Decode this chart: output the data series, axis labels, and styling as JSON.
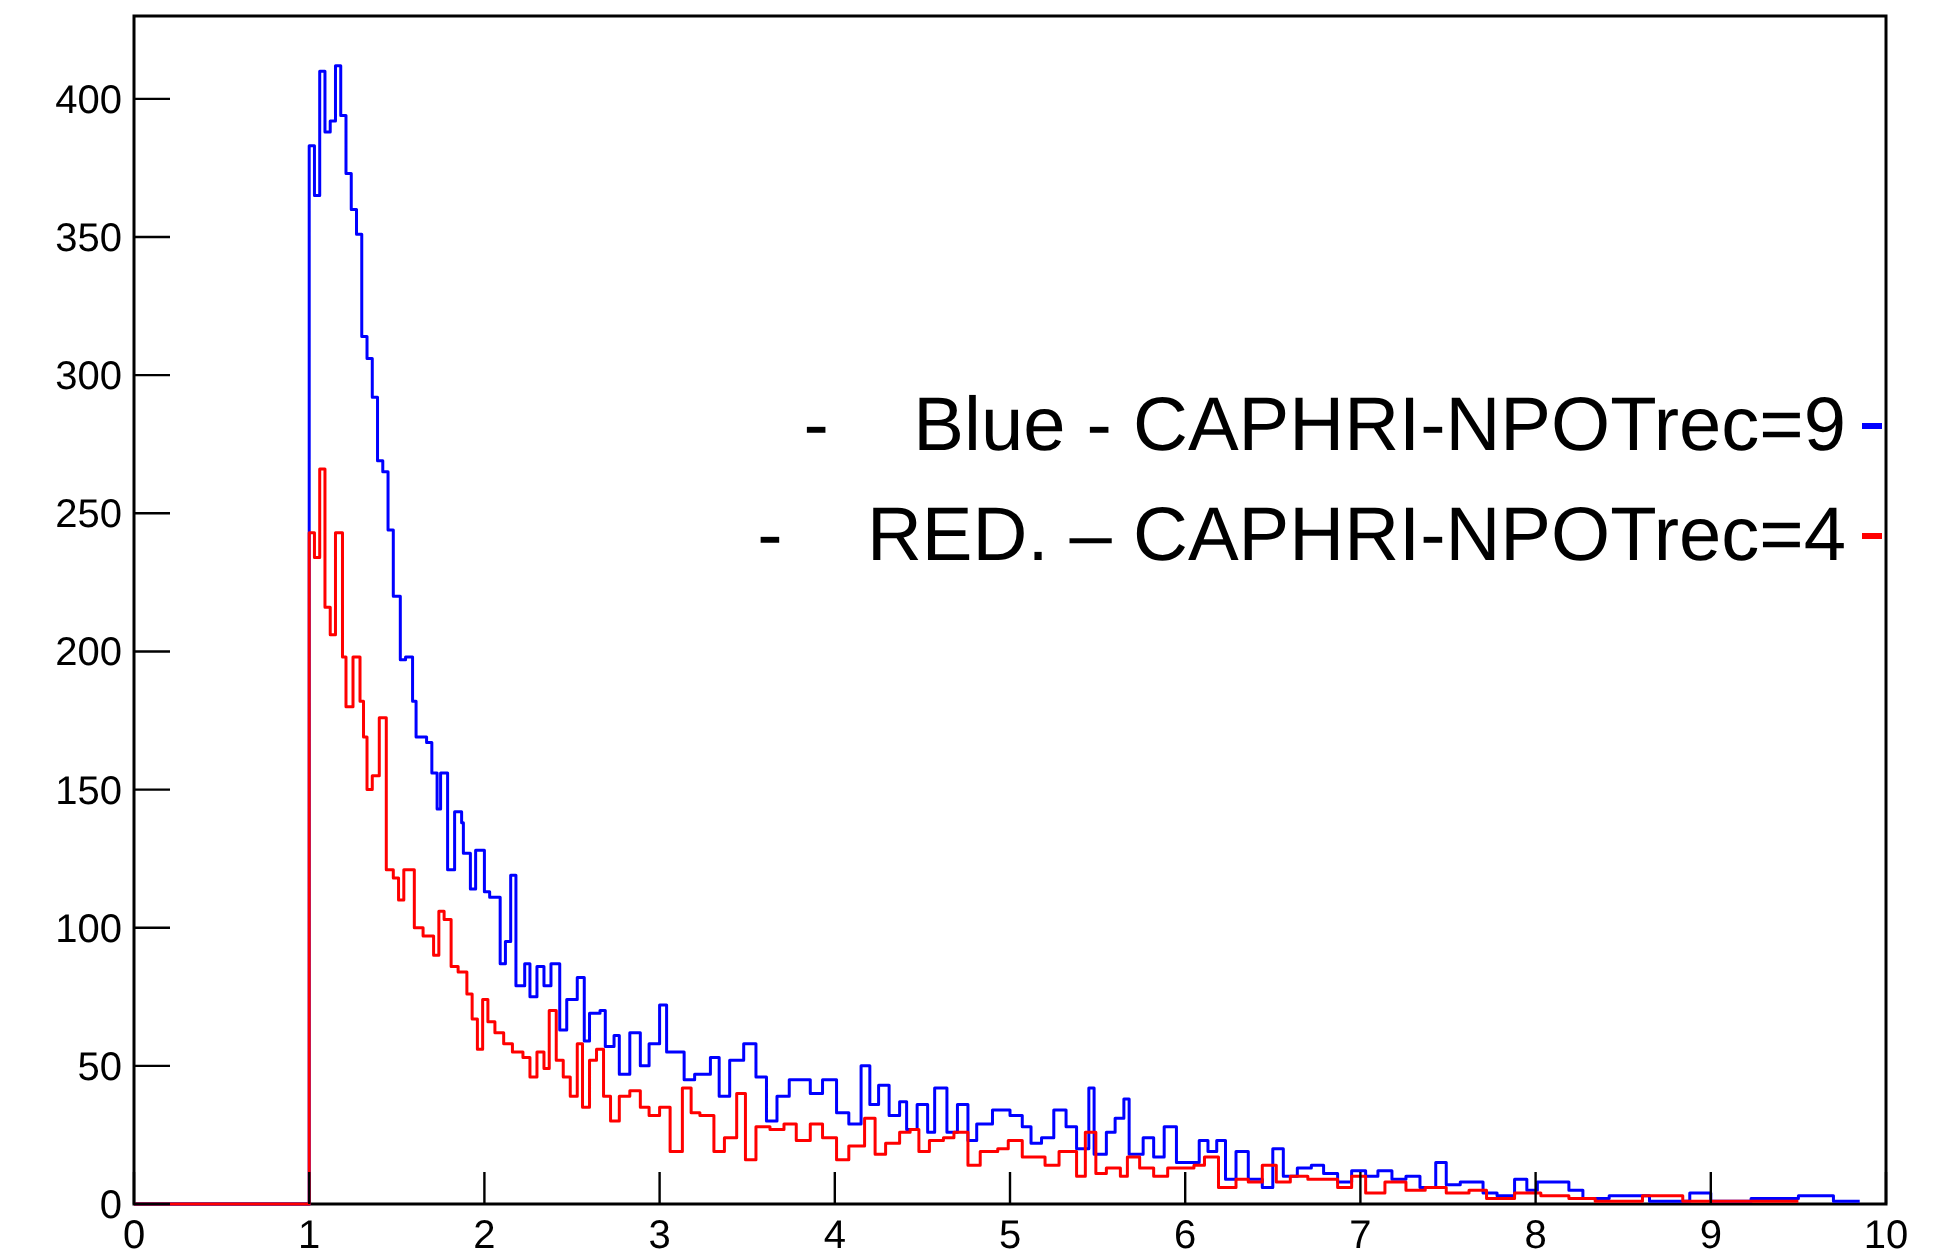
{
  "chart_data": {
    "type": "step",
    "xlim": [
      0,
      10
    ],
    "xticks": [
      0,
      1,
      2,
      3,
      4,
      5,
      6,
      7,
      8,
      9,
      10
    ],
    "ylim": [
      0,
      430
    ],
    "yticks": [
      0,
      50,
      100,
      150,
      200,
      250,
      300,
      350,
      400
    ],
    "legend": "top right",
    "grid": false,
    "series": [
      {
        "name": "-    Blue - CAPHRI-NPOTrec=9",
        "color": "#0000ff",
        "x": [
          0,
          1.0,
          1.03,
          1.06,
          1.09,
          1.12,
          1.15,
          1.18,
          1.21,
          1.24,
          1.27,
          1.3,
          1.33,
          1.36,
          1.39,
          1.42,
          1.45,
          1.48,
          1.52,
          1.55,
          1.59,
          1.61,
          1.67,
          1.7,
          1.73,
          1.75,
          1.79,
          1.83,
          1.87,
          1.88,
          1.92,
          1.95,
          2.0,
          2.03,
          2.09,
          2.12,
          2.15,
          2.18,
          2.23,
          2.26,
          2.3,
          2.34,
          2.38,
          2.43,
          2.47,
          2.53,
          2.57,
          2.6,
          2.66,
          2.69,
          2.74,
          2.77,
          2.83,
          2.89,
          2.94,
          3.0,
          3.04,
          3.1,
          3.14,
          3.2,
          3.29,
          3.34,
          3.4,
          3.48,
          3.55,
          3.61,
          3.67,
          3.74,
          3.8,
          3.86,
          3.93,
          4.01,
          4.08,
          4.15,
          4.2,
          4.25,
          4.31,
          4.37,
          4.41,
          4.47,
          4.53,
          4.57,
          4.64,
          4.7,
          4.76,
          4.81,
          4.9,
          5.0,
          5.07,
          5.12,
          5.18,
          5.25,
          5.32,
          5.38,
          5.45,
          5.48,
          5.55,
          5.6,
          5.65,
          5.68,
          5.76,
          5.82,
          5.88,
          5.95,
          6.02,
          6.08,
          6.13,
          6.18,
          6.23,
          6.29,
          6.36,
          6.44,
          6.5,
          6.56,
          6.64,
          6.72,
          6.79,
          6.87,
          6.95,
          7.03,
          7.1,
          7.18,
          7.26,
          7.34,
          7.43,
          7.49,
          7.57,
          7.63,
          7.7,
          7.78,
          7.88,
          7.95,
          8.01,
          8.1,
          8.19,
          8.27,
          8.42,
          8.53,
          8.65,
          8.88,
          9.0,
          9.23,
          9.5,
          9.7,
          9.85
        ],
        "values": [
          0,
          383,
          365,
          410,
          388,
          392,
          412,
          394,
          373,
          360,
          351,
          314,
          306,
          292,
          269,
          265,
          244,
          220,
          197,
          198,
          182,
          169,
          167,
          156,
          143,
          156,
          121,
          142,
          138,
          127,
          114,
          128,
          113,
          111,
          87,
          95,
          119,
          79,
          87,
          75,
          86,
          79,
          87,
          63,
          74,
          82,
          59,
          69,
          70,
          57,
          61,
          47,
          62,
          50,
          58,
          72,
          55,
          55,
          45,
          47,
          53,
          39,
          52,
          58,
          46,
          30,
          39,
          45,
          45,
          40,
          45,
          33,
          29,
          50,
          36,
          43,
          32,
          37,
          27,
          36,
          26,
          42,
          26,
          36,
          23,
          29,
          34,
          32,
          28,
          22,
          24,
          34,
          28,
          20,
          42,
          18,
          26,
          31,
          38,
          18,
          24,
          17,
          28,
          15,
          15,
          23,
          19,
          23,
          9,
          19,
          9,
          6,
          20,
          10,
          13,
          14,
          11,
          8,
          12,
          10,
          12,
          9,
          10,
          6,
          15,
          7,
          8,
          8,
          4,
          3,
          9,
          5,
          8,
          8,
          5,
          2,
          3,
          3,
          1,
          4,
          1,
          2,
          3,
          1,
          1
        ]
      },
      {
        "name": "-    RED. – CAPHRI-NPOTrec=4",
        "color": "#ff0000",
        "x": [
          0,
          1.0,
          1.03,
          1.06,
          1.09,
          1.12,
          1.15,
          1.19,
          1.21,
          1.25,
          1.29,
          1.31,
          1.33,
          1.36,
          1.4,
          1.44,
          1.48,
          1.51,
          1.54,
          1.57,
          1.6,
          1.65,
          1.71,
          1.74,
          1.77,
          1.81,
          1.85,
          1.9,
          1.93,
          1.96,
          1.99,
          2.02,
          2.06,
          2.11,
          2.16,
          2.22,
          2.26,
          2.3,
          2.34,
          2.37,
          2.41,
          2.45,
          2.49,
          2.53,
          2.56,
          2.6,
          2.64,
          2.68,
          2.72,
          2.77,
          2.83,
          2.89,
          2.94,
          3.0,
          3.06,
          3.13,
          3.18,
          3.23,
          3.31,
          3.37,
          3.44,
          3.49,
          3.55,
          3.63,
          3.71,
          3.78,
          3.86,
          3.93,
          4.01,
          4.08,
          4.17,
          4.23,
          4.29,
          4.37,
          4.43,
          4.48,
          4.54,
          4.62,
          4.68,
          4.76,
          4.83,
          4.93,
          4.99,
          5.07,
          5.14,
          5.2,
          5.28,
          5.38,
          5.43,
          5.49,
          5.55,
          5.63,
          5.67,
          5.74,
          5.82,
          5.9,
          5.98,
          6.05,
          6.11,
          6.19,
          6.29,
          6.36,
          6.44,
          6.52,
          6.6,
          6.7,
          6.79,
          6.87,
          6.95,
          7.03,
          7.14,
          7.26,
          7.37,
          7.49,
          7.62,
          7.72,
          7.88,
          8.03,
          8.19,
          8.34,
          8.61,
          8.84,
          9.12,
          9.5
        ],
        "values": [
          0,
          243,
          234,
          266,
          216,
          206,
          243,
          198,
          180,
          198,
          182,
          169,
          150,
          155,
          176,
          121,
          118,
          110,
          121,
          121,
          100,
          97,
          90,
          106,
          103,
          86,
          84,
          76,
          67,
          56,
          74,
          66,
          62,
          58,
          55,
          53,
          46,
          55,
          49,
          70,
          52,
          46,
          39,
          58,
          35,
          52,
          56,
          39,
          30,
          39,
          41,
          35,
          32,
          35,
          19,
          42,
          33,
          32,
          19,
          24,
          40,
          16,
          28,
          27,
          29,
          23,
          29,
          24,
          16,
          21,
          31,
          18,
          22,
          26,
          27,
          19,
          23,
          24,
          26,
          14,
          19,
          20,
          23,
          17,
          17,
          14,
          19,
          10,
          26,
          11,
          13,
          10,
          17,
          13,
          10,
          13,
          13,
          14,
          17,
          6,
          9,
          8,
          14,
          8,
          10,
          9,
          9,
          6,
          10,
          4,
          8,
          5,
          6,
          4,
          5,
          2,
          4,
          3,
          2,
          1,
          3,
          1,
          1,
          1
        ]
      }
    ]
  }
}
